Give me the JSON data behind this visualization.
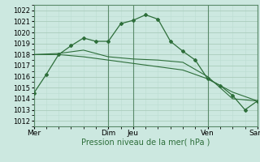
{
  "title": "Pression niveau de la mer( hPa )",
  "bg_color": "#cce8e0",
  "grid_major_color": "#aaccbb",
  "grid_minor_color": "#bbddd0",
  "line_color": "#2d6e3a",
  "vline_color": "#5a8a6a",
  "ylim": [
    1011.5,
    1022.5
  ],
  "yticks": [
    1012,
    1013,
    1014,
    1015,
    1016,
    1017,
    1018,
    1019,
    1020,
    1021,
    1022
  ],
  "xtick_labels": [
    "Mer",
    "",
    "",
    "Dim",
    "Jeu",
    "",
    "",
    "Ven",
    "",
    "Sam"
  ],
  "xtick_positions": [
    0,
    1,
    2,
    3,
    4,
    5,
    6,
    7,
    8,
    9
  ],
  "xlim": [
    0,
    9
  ],
  "vline_positions": [
    0,
    3,
    4,
    7,
    9
  ],
  "series1": {
    "x": [
      0,
      0.5,
      1,
      1.5,
      2,
      2.5,
      3,
      3.5,
      4,
      4.5,
      5,
      5.5,
      6,
      6.5,
      7,
      7.5,
      8,
      8.5,
      9
    ],
    "y": [
      1014.5,
      1016.2,
      1018.0,
      1018.8,
      1019.5,
      1019.2,
      1019.2,
      1020.8,
      1021.1,
      1021.6,
      1021.2,
      1019.2,
      1018.3,
      1017.5,
      1015.8,
      1015.2,
      1014.3,
      1013.0,
      1013.8
    ]
  },
  "series2": {
    "x": [
      0,
      1,
      2,
      3,
      4,
      5,
      6,
      7,
      8,
      9
    ],
    "y": [
      1018.0,
      1018.1,
      1018.4,
      1017.8,
      1017.6,
      1017.5,
      1017.3,
      1016.0,
      1014.0,
      1013.8
    ]
  },
  "series3": {
    "x": [
      0,
      1,
      2,
      3,
      4,
      5,
      6,
      7,
      8,
      9
    ],
    "y": [
      1018.0,
      1018.0,
      1017.8,
      1017.5,
      1017.2,
      1016.9,
      1016.6,
      1015.8,
      1014.6,
      1013.8
    ]
  }
}
